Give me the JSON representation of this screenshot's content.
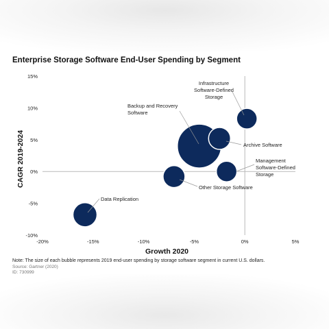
{
  "title": "Enterprise Storage Software End-User Spending by Segment",
  "note": "Note: The size of each bubble represents 2019 end-user spending by storage software segment in current U.S. dollars.",
  "source": "Source: Gartner (2020)",
  "doc_id": "ID: 730999",
  "colors": {
    "bubble": "#0d2a5c",
    "bubble_stroke": "#ffffff",
    "axis": "#b9b9b9",
    "leader": "#999999",
    "text": "#222222"
  },
  "chart_data": {
    "type": "scatter",
    "title": "Enterprise Storage Software End-User Spending by Segment",
    "xlabel": "Growth 2020",
    "ylabel": "CAGR 2019-2024",
    "xlim": [
      -20,
      5
    ],
    "ylim": [
      -10,
      15
    ],
    "xticks": [
      -20,
      -15,
      -10,
      -5,
      0,
      5
    ],
    "xtick_labels": [
      "-20%",
      "-15%",
      "-10%",
      "-5%",
      "0%",
      "5%"
    ],
    "yticks": [
      15,
      10,
      5,
      0,
      -5,
      -10
    ],
    "ytick_labels": [
      "15%",
      "10%",
      "5%",
      "0%",
      "-5%",
      "-10%"
    ],
    "grid": false,
    "points": [
      {
        "name": "Backup and Recovery Software",
        "label_lines": [
          "Backup and Recovery",
          "Software"
        ],
        "x": -4.5,
        "y": 4.0,
        "size": 100
      },
      {
        "name": "Archive Software",
        "label_lines": [
          "Archive Software"
        ],
        "x": -2.5,
        "y": 5.2,
        "size": 25
      },
      {
        "name": "Infrastructure Software-Defined Storage",
        "label_lines": [
          "Infrastructure",
          "Software-Defined",
          "Storage"
        ],
        "x": 0.2,
        "y": 8.3,
        "size": 22
      },
      {
        "name": "Management Software-Defined Storage",
        "label_lines": [
          "Management",
          "Software-Defined",
          "Storage"
        ],
        "x": -1.8,
        "y": 0.0,
        "size": 22
      },
      {
        "name": "Other Storage Software",
        "label_lines": [
          "Other Storage Software"
        ],
        "x": -7.0,
        "y": -0.8,
        "size": 25
      },
      {
        "name": "Data Replication",
        "label_lines": [
          "Data Replication"
        ],
        "x": -15.8,
        "y": -6.8,
        "size": 30
      }
    ]
  }
}
